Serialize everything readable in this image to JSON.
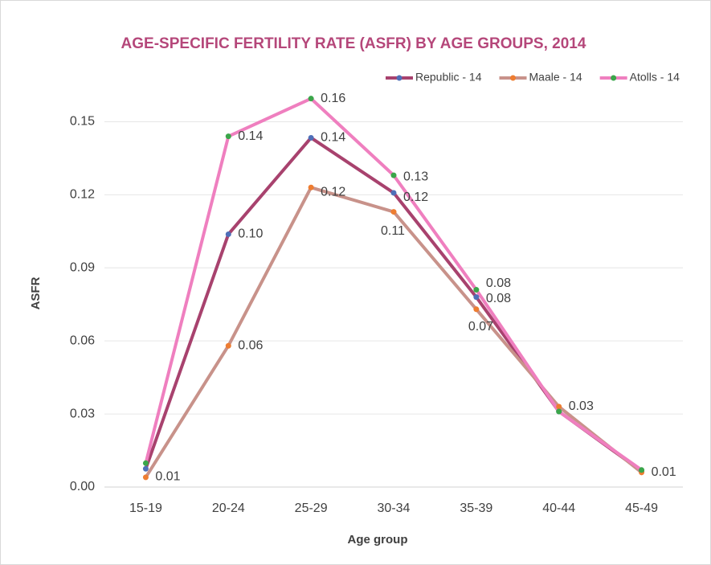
{
  "chart_data": {
    "type": "line",
    "title": "AGE-SPECIFIC FERTILITY RATE (ASFR) BY AGE GROUPS, 2014",
    "x_label": "Age group",
    "y_label": "ASFR",
    "categories": [
      "15-19",
      "20-24",
      "25-29",
      "30-34",
      "35-39",
      "40-44",
      "45-49"
    ],
    "series": [
      {
        "name": "Republic - 14",
        "color": "#a8426e",
        "marker_color": "#4f6fb8",
        "values": [
          0.0075,
          0.1038,
          0.1434,
          0.1208,
          0.078,
          0.031,
          0.0065
        ],
        "value_labels": [
          "0.01",
          "0.10",
          "0.14",
          "0.12",
          "0.08",
          null,
          null
        ]
      },
      {
        "name": "Maale - 14",
        "color": "#c8928a",
        "marker_color": "#ee7d31",
        "values": [
          0.004,
          0.058,
          0.123,
          0.113,
          0.073,
          0.033,
          0.006
        ],
        "value_labels": [
          null,
          "0.06",
          "0.12",
          "0.11",
          "0.07",
          "0.03",
          "0.01"
        ]
      },
      {
        "name": "Atolls - 14",
        "color": "#ef7fbf",
        "marker_color": "#3aa64a",
        "values": [
          0.0098,
          0.144,
          0.1595,
          0.128,
          0.081,
          0.031,
          0.007
        ],
        "value_labels": [
          null,
          "0.14",
          "0.16",
          "0.13",
          "0.08",
          null,
          null
        ]
      }
    ],
    "ylim": [
      0,
      0.165
    ],
    "yticks": [
      {
        "value": 0,
        "label": "0.00"
      },
      0.03,
      0.06,
      0.09,
      0.12,
      0.15
    ],
    "grid": true,
    "legend": "top-right"
  }
}
